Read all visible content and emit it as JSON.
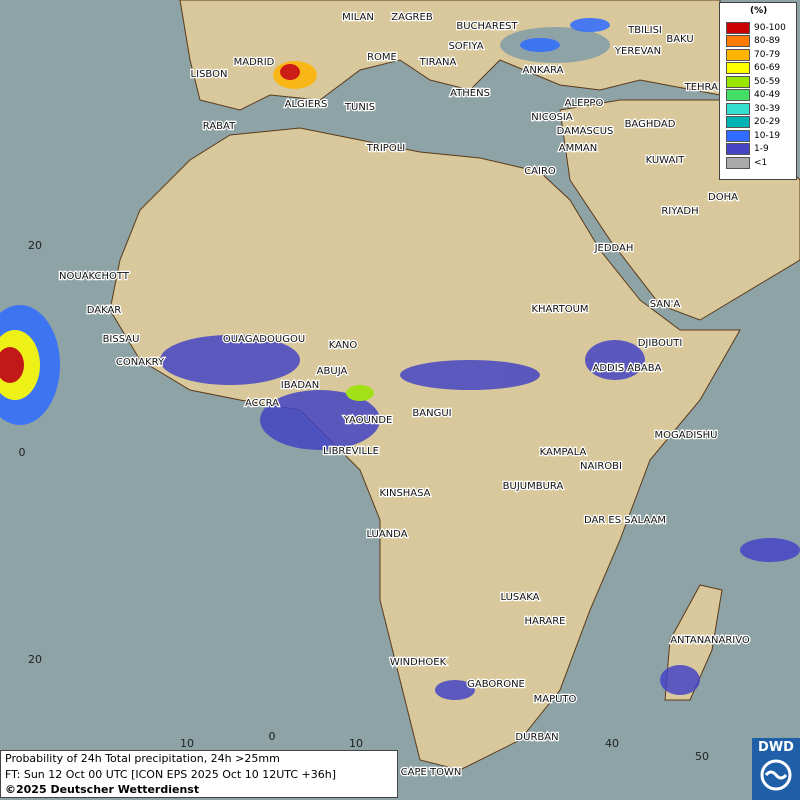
{
  "map": {
    "cities": [
      "MILAN",
      "ZAGREB",
      "BUCHAREST",
      "TBILISI",
      "BAKU",
      "YEREVAN",
      "MADRID",
      "ROME",
      "SOFIYA",
      "LISBON",
      "TIRANA",
      "ANKARA",
      "TEHRAN",
      "ALGIERS",
      "ATHENS",
      "ALEPPO",
      "NICOSIA",
      "RABAT",
      "TUNIS",
      "BAGHDAD",
      "DAMASCUS",
      "TRIPOLI",
      "AMMAN",
      "KUWAIT",
      "CAIRO",
      "DOHA",
      "RIYADH",
      "JEDDAH",
      "NOUAKCHOTT",
      "SAN'A",
      "DAKAR",
      "KHARTOUM",
      "BISSAU",
      "OUAGADOUGOU",
      "KANO",
      "DJIBOUTI",
      "CONAKRY",
      "ABUJA",
      "ADDIS ABABA",
      "IBADAN",
      "ACCRA",
      "YAOUNDE",
      "BANGUI",
      "MOGADISHU",
      "LIBREVILLE",
      "KAMPALA",
      "NAIROBI",
      "BUJUMBURA",
      "KINSHASA",
      "DAR ES SALAAM",
      "LUANDA",
      "LUSAKA",
      "HARARE",
      "ANTANANARIVO",
      "WINDHOEK",
      "GABORONE",
      "MAPUTO",
      "DURBAN",
      "CAPE TOWN"
    ],
    "lat_labels": [
      20,
      0,
      20
    ],
    "lon_labels": [
      10,
      0,
      10,
      40,
      50
    ]
  },
  "legend": {
    "unit": "(%)",
    "items": [
      {
        "label": "90-100",
        "color": "#cc0000"
      },
      {
        "label": "80-89",
        "color": "#ff7a00"
      },
      {
        "label": "70-79",
        "color": "#ffb400"
      },
      {
        "label": "60-69",
        "color": "#ffff00"
      },
      {
        "label": "50-59",
        "color": "#99e600"
      },
      {
        "label": "40-49",
        "color": "#44dd66"
      },
      {
        "label": "30-39",
        "color": "#33e0d0"
      },
      {
        "label": "20-29",
        "color": "#00b4b4"
      },
      {
        "label": "10-19",
        "color": "#2f6cff"
      },
      {
        "label": "1-9",
        "color": "#4444c4"
      },
      {
        "label": "<1",
        "color": "#aaaaaa"
      }
    ]
  },
  "footer": {
    "lines": [
      "Probability of 24h Total precipitation, 24h >25mm",
      "FT: Sun 12 Oct 00 UTC [ICON EPS 2025 Oct 10 12UTC +36h]",
      "©2025 Deutscher Wetterdienst"
    ]
  },
  "logo": "DWD"
}
